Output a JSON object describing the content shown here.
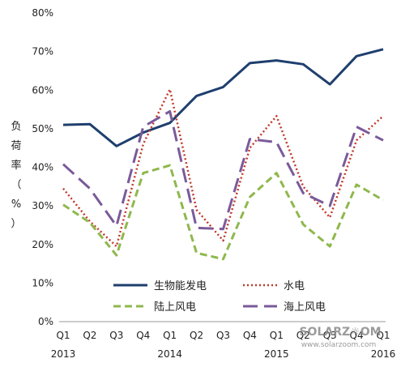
{
  "chart_data": {
    "type": "line",
    "ylabel": "负荷率（%）",
    "yticks": [
      "0%",
      "10%",
      "20%",
      "30%",
      "40%",
      "50%",
      "60%",
      "70%",
      "80%"
    ],
    "ylim": [
      0,
      80
    ],
    "categories": [
      "Q1",
      "Q2",
      "Q3",
      "Q4",
      "Q1",
      "Q2",
      "Q3",
      "Q4",
      "Q1",
      "Q2",
      "Q3",
      "Q4",
      "Q1"
    ],
    "years": [
      {
        "label": "2013",
        "index": 0
      },
      {
        "label": "2014",
        "index": 4
      },
      {
        "label": "2015",
        "index": 8
      },
      {
        "label": "2016",
        "index": 12
      }
    ],
    "series": [
      {
        "name": "生物能发电",
        "style": "solid",
        "color": "#1f3f6e",
        "values": [
          51,
          51.2,
          45.5,
          49,
          51.5,
          58.5,
          60.8,
          67,
          67.7,
          66.7,
          61.5,
          68.8,
          70.6
        ]
      },
      {
        "name": "水电",
        "style": "dotted",
        "color": "#c0392b",
        "values": [
          34.5,
          26,
          19.5,
          46,
          60.2,
          29,
          21,
          45,
          53.3,
          35,
          27,
          47,
          53.3
        ]
      },
      {
        "name": "陆上风电",
        "style": "dashed",
        "color": "#8fb84d",
        "values": [
          30.3,
          25.7,
          17.2,
          38.5,
          40.5,
          17.8,
          16.2,
          32.3,
          38.5,
          25.2,
          19.5,
          35.5,
          31.5
        ]
      },
      {
        "name": "海上风电",
        "style": "longdash",
        "color": "#7a5a9a",
        "values": [
          40.8,
          34.5,
          24.8,
          50.5,
          54.5,
          24.3,
          24,
          47.3,
          46.5,
          33.3,
          30,
          50.5,
          47
        ]
      }
    ],
    "legend": "inside-bottom",
    "grid": false
  },
  "watermark": {
    "brand": "SOLARZ☼OM",
    "url": "www.solarzoom.com"
  }
}
